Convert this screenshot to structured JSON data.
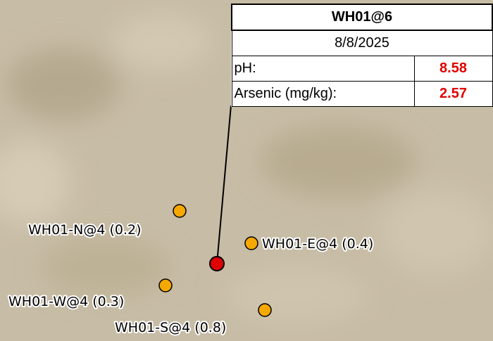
{
  "callout": {
    "title": "WH01@6",
    "date": "8/8/2025",
    "rows": [
      {
        "label": "pH:",
        "value": "8.58"
      },
      {
        "label": "Arsenic (mg/kg):",
        "value": "2.57"
      }
    ]
  },
  "samples": [
    {
      "label": "WH01-N@4 (0.2)"
    },
    {
      "label": "WH01-E@4 (0.4)"
    },
    {
      "label": "WH01-W@4 (0.3)"
    },
    {
      "label": "WH01-S@4 (0.8)"
    }
  ]
}
